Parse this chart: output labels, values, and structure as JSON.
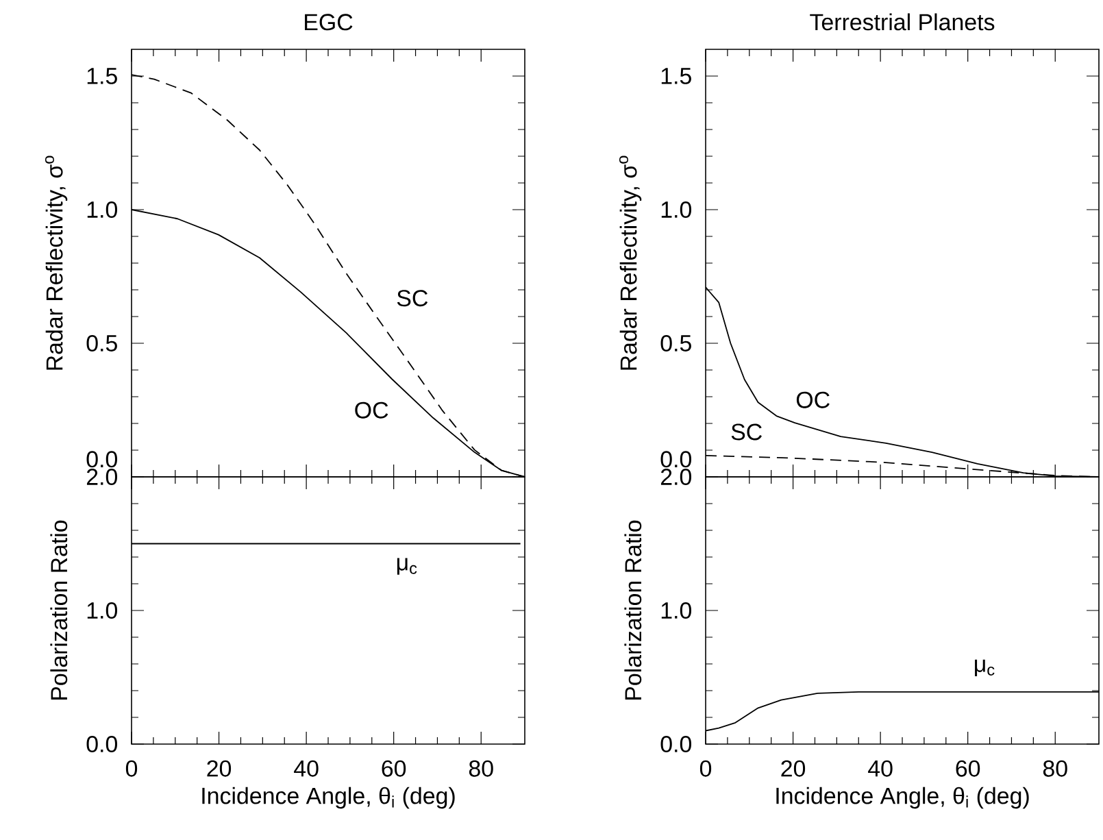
{
  "chart_data": [
    {
      "type": "line",
      "title": "EGC",
      "ylabel": "Radar Reflectivity, σ$^{o}$",
      "xlim": [
        0,
        90
      ],
      "xticks": [
        0,
        20,
        40,
        60,
        80
      ],
      "ylim": [
        0,
        1.6
      ],
      "yticks": [
        {
          "value": 0,
          "label": "0.0"
        },
        {
          "value": 0.5,
          "label": "0.5"
        },
        {
          "value": 1,
          "label": "1.0"
        },
        {
          "value": 1.5,
          "label": "1.5"
        }
      ],
      "tick_labels": "y",
      "color": "#000000",
      "series": [
        {
          "x": [
            0,
            5.2,
            13.6,
            22,
            29.3,
            35.6,
            41.8,
            49.2,
            56.5,
            63.9,
            71.2,
            78.5,
            84.7,
            90
          ],
          "values": [
            1.505,
            1.488,
            1.437,
            1.334,
            1.223,
            1.094,
            0.949,
            0.76,
            0.589,
            0.418,
            0.247,
            0.101,
            0.024,
            0
          ],
          "line_style": "dashed"
        },
        {
          "x": [
            0,
            10.5,
            19.9,
            29.3,
            38.7,
            49.2,
            59.6,
            69,
            78.5,
            84.7,
            90
          ],
          "values": [
            1.0,
            0.966,
            0.906,
            0.82,
            0.692,
            0.538,
            0.366,
            0.221,
            0.092,
            0.024,
            0
          ],
          "line_style": "solid"
        }
      ],
      "annotations": [
        "SC",
        "OC"
      ]
    },
    {
      "type": "line",
      "title": "Terrestrial Planets",
      "ylabel": "Radar Reflectivity, σ$^{o}$",
      "xlim": [
        0,
        90
      ],
      "xticks": [
        0,
        20,
        40,
        60,
        80
      ],
      "ylim": [
        0,
        1.6
      ],
      "yticks": [
        {
          "value": 0,
          "label": "0.0"
        },
        {
          "value": 0.5,
          "label": "0.5"
        },
        {
          "value": 1,
          "label": "1.0"
        },
        {
          "value": 1.5,
          "label": "1.5"
        }
      ],
      "tick_labels": "y",
      "color": "#000000",
      "series": [
        {
          "x": [
            0,
            0.5,
            3,
            5.7,
            8.9,
            12,
            16.2,
            20.4,
            30.9,
            41.3,
            51.8,
            62.2,
            72.7,
            80,
            90
          ],
          "values": [
            0.71,
            0.7,
            0.653,
            0.5,
            0.364,
            0.279,
            0.228,
            0.202,
            0.151,
            0.126,
            0.092,
            0.049,
            0.015,
            0.003,
            0
          ],
          "line_style": "solid"
        },
        {
          "x": [
            0,
            20,
            40,
            60,
            80,
            90
          ],
          "values": [
            0.08,
            0.07,
            0.055,
            0.03,
            0.005,
            0
          ],
          "line_style": "dashed"
        }
      ],
      "annotations": [
        "OC",
        "SC"
      ]
    },
    {
      "type": "line",
      "xlabel": "Incidence Angle, θ$_{i}$ (deg)",
      "ylabel": "Polarization Ratio",
      "xlim": [
        0,
        90
      ],
      "xticks": [
        0,
        20,
        40,
        60,
        80
      ],
      "ylim": [
        0,
        2
      ],
      "yticks": [
        {
          "value": 0,
          "label": "0.0"
        },
        {
          "value": 1,
          "label": "1.0"
        },
        {
          "value": 2,
          "label": "2.0"
        }
      ],
      "color": "#000000",
      "series": [
        {
          "x": [
            0,
            20,
            40,
            60,
            80,
            89
          ],
          "values": [
            1.5,
            1.5,
            1.5,
            1.5,
            1.5,
            1.5
          ],
          "line_style": "solid"
        }
      ],
      "annotations": [
        "μ$_{c}$"
      ]
    },
    {
      "type": "line",
      "xlabel": "Incidence Angle, θ$_{i}$ (deg)",
      "ylabel": "Polarization Ratio",
      "xlim": [
        0,
        90
      ],
      "xticks": [
        0,
        20,
        40,
        60,
        80
      ],
      "ylim": [
        0,
        2
      ],
      "yticks": [
        {
          "value": 0,
          "label": "0.0"
        },
        {
          "value": 1,
          "label": "1.0"
        },
        {
          "value": 2,
          "label": "2.0"
        }
      ],
      "color": "#000000",
      "series": [
        {
          "x": [
            0,
            3,
            6.8,
            12,
            17.3,
            25.6,
            35,
            50,
            70,
            90
          ],
          "values": [
            0.1,
            0.12,
            0.16,
            0.27,
            0.33,
            0.38,
            0.39,
            0.39,
            0.39,
            0.39
          ],
          "line_style": "solid"
        }
      ],
      "annotations": [
        "μ$_{c}$"
      ]
    }
  ]
}
